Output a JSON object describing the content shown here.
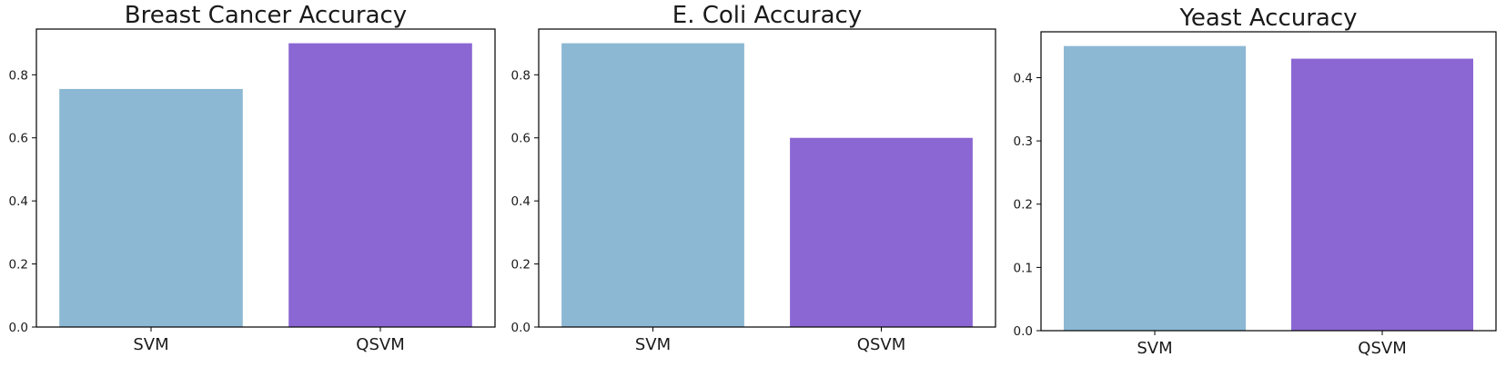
{
  "colors": {
    "svm": "#8cb8d4",
    "qsvm": "#8b67d4",
    "axis": "#000000"
  },
  "chart_data": [
    {
      "type": "bar",
      "title": "Breast Cancer Accuracy",
      "categories": [
        "SVM",
        "QSVM"
      ],
      "values": [
        0.755,
        0.9
      ],
      "ylim": [
        0,
        0.945
      ],
      "yticks": [
        "0.0",
        "0.2",
        "0.4",
        "0.6",
        "0.8"
      ],
      "xlabel": "",
      "ylabel": ""
    },
    {
      "type": "bar",
      "title": "E. Coli Accuracy",
      "categories": [
        "SVM",
        "QSVM"
      ],
      "values": [
        0.9,
        0.6
      ],
      "ylim": [
        0,
        0.945
      ],
      "yticks": [
        "0.0",
        "0.2",
        "0.4",
        "0.6",
        "0.8"
      ],
      "xlabel": "",
      "ylabel": ""
    },
    {
      "type": "bar",
      "title": "Yeast Accuracy",
      "categories": [
        "SVM",
        "QSVM"
      ],
      "values": [
        0.45,
        0.43
      ],
      "ylim": [
        0,
        0.4725
      ],
      "yticks": [
        "0.0",
        "0.1",
        "0.2",
        "0.3",
        "0.4"
      ],
      "xlabel": "",
      "ylabel": ""
    }
  ]
}
